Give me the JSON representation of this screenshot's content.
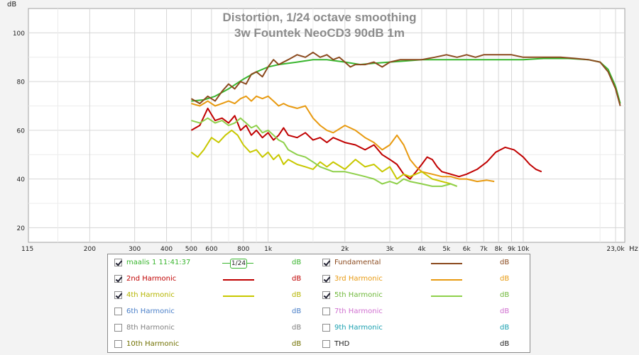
{
  "chart_data": {
    "type": "line",
    "title": "Distortion, 1/24 octave smoothing",
    "subtitle": "3w Fountek NeoCD3 90dB 1m",
    "ylabel": "dB",
    "x_unit_label": "Hz",
    "x_scale": "log",
    "xlim": [
      115,
      25000
    ],
    "ylim": [
      14,
      110
    ],
    "y_ticks": [
      20,
      40,
      60,
      80,
      100
    ],
    "x_ticks": [
      {
        "v": 115,
        "label": "115"
      },
      {
        "v": 200,
        "label": "200"
      },
      {
        "v": 300,
        "label": "300"
      },
      {
        "v": 400,
        "label": "400"
      },
      {
        "v": 500,
        "label": "500"
      },
      {
        "v": 600,
        "label": "600"
      },
      {
        "v": 800,
        "label": "800"
      },
      {
        "v": 1000,
        "label": "1k"
      },
      {
        "v": 2000,
        "label": "2k"
      },
      {
        "v": 3000,
        "label": "3k"
      },
      {
        "v": 4000,
        "label": "4k"
      },
      {
        "v": 5000,
        "label": "5k"
      },
      {
        "v": 6000,
        "label": "6k"
      },
      {
        "v": 7000,
        "label": "7k"
      },
      {
        "v": 8000,
        "label": "8k"
      },
      {
        "v": 9000,
        "label": "9k"
      },
      {
        "v": 10000,
        "label": "10k"
      },
      {
        "v": 23000,
        "label": "23,0k"
      }
    ],
    "x_minor": [
      150,
      700,
      900,
      1500,
      20000
    ],
    "series": [
      {
        "name": "maalis 1 11:41:37",
        "color": "#39b52e",
        "points": [
          [
            500,
            72
          ],
          [
            560,
            72.5
          ],
          [
            620,
            74
          ],
          [
            700,
            77
          ],
          [
            800,
            81
          ],
          [
            900,
            84
          ],
          [
            1000,
            86
          ],
          [
            1100,
            87
          ],
          [
            1300,
            88
          ],
          [
            1500,
            89
          ],
          [
            1700,
            89
          ],
          [
            2000,
            88
          ],
          [
            2300,
            87
          ],
          [
            2600,
            87.5
          ],
          [
            3000,
            88
          ],
          [
            3500,
            88.5
          ],
          [
            4000,
            89
          ],
          [
            5000,
            89
          ],
          [
            6000,
            89
          ],
          [
            7000,
            89
          ],
          [
            8000,
            89
          ],
          [
            9000,
            89
          ],
          [
            10000,
            89
          ],
          [
            12000,
            89.5
          ],
          [
            15000,
            89.5
          ],
          [
            18000,
            89
          ],
          [
            20000,
            88
          ],
          [
            21500,
            85
          ],
          [
            23000,
            78
          ],
          [
            24000,
            71
          ]
        ]
      },
      {
        "name": "Fundamental",
        "color": "#8b4a1e",
        "points": [
          [
            500,
            73
          ],
          [
            540,
            71
          ],
          [
            580,
            74
          ],
          [
            620,
            72
          ],
          [
            660,
            76
          ],
          [
            700,
            79
          ],
          [
            740,
            77
          ],
          [
            780,
            80
          ],
          [
            820,
            79
          ],
          [
            860,
            83
          ],
          [
            900,
            84
          ],
          [
            950,
            82
          ],
          [
            1000,
            86
          ],
          [
            1050,
            89
          ],
          [
            1100,
            87
          ],
          [
            1200,
            89
          ],
          [
            1300,
            91
          ],
          [
            1400,
            90
          ],
          [
            1500,
            92
          ],
          [
            1600,
            90
          ],
          [
            1700,
            91
          ],
          [
            1800,
            89
          ],
          [
            1900,
            90
          ],
          [
            2000,
            88
          ],
          [
            2100,
            86
          ],
          [
            2200,
            87
          ],
          [
            2400,
            87
          ],
          [
            2600,
            88
          ],
          [
            2800,
            86
          ],
          [
            3000,
            88
          ],
          [
            3300,
            89
          ],
          [
            3600,
            89
          ],
          [
            4000,
            89
          ],
          [
            4500,
            90
          ],
          [
            5000,
            91
          ],
          [
            5500,
            90
          ],
          [
            6000,
            91
          ],
          [
            6500,
            90
          ],
          [
            7000,
            91
          ],
          [
            8000,
            91
          ],
          [
            9000,
            91
          ],
          [
            10000,
            90
          ],
          [
            11000,
            90
          ],
          [
            12000,
            90
          ],
          [
            14000,
            90
          ],
          [
            16000,
            89.5
          ],
          [
            18000,
            89
          ],
          [
            20000,
            88
          ],
          [
            21500,
            84
          ],
          [
            23000,
            77
          ],
          [
            24000,
            70
          ]
        ]
      },
      {
        "name": "2nd Harmonic",
        "color": "#c00000",
        "points": [
          [
            500,
            60
          ],
          [
            540,
            62
          ],
          [
            580,
            69
          ],
          [
            620,
            64
          ],
          [
            660,
            65
          ],
          [
            700,
            63
          ],
          [
            740,
            66
          ],
          [
            780,
            60
          ],
          [
            820,
            62
          ],
          [
            860,
            58
          ],
          [
            900,
            60
          ],
          [
            950,
            57
          ],
          [
            1000,
            59
          ],
          [
            1050,
            56
          ],
          [
            1100,
            58
          ],
          [
            1150,
            61
          ],
          [
            1200,
            58
          ],
          [
            1300,
            57
          ],
          [
            1400,
            59
          ],
          [
            1500,
            56
          ],
          [
            1600,
            57
          ],
          [
            1700,
            55
          ],
          [
            1800,
            57
          ],
          [
            2000,
            55
          ],
          [
            2200,
            54
          ],
          [
            2400,
            52
          ],
          [
            2600,
            54
          ],
          [
            2800,
            50
          ],
          [
            3000,
            48
          ],
          [
            3200,
            46
          ],
          [
            3400,
            42
          ],
          [
            3600,
            40
          ],
          [
            3800,
            43
          ],
          [
            4000,
            46
          ],
          [
            4200,
            49
          ],
          [
            4400,
            48
          ],
          [
            4600,
            45
          ],
          [
            4800,
            43
          ],
          [
            5200,
            42
          ],
          [
            5600,
            41
          ],
          [
            6000,
            42
          ],
          [
            6600,
            44
          ],
          [
            7200,
            47
          ],
          [
            7800,
            51
          ],
          [
            8500,
            53
          ],
          [
            9200,
            52
          ],
          [
            10000,
            49
          ],
          [
            10600,
            46
          ],
          [
            11200,
            44
          ],
          [
            11800,
            43
          ]
        ]
      },
      {
        "name": "3rd Harmonic",
        "color": "#e89a10",
        "points": [
          [
            500,
            71
          ],
          [
            540,
            70
          ],
          [
            580,
            72
          ],
          [
            620,
            70
          ],
          [
            660,
            71
          ],
          [
            700,
            72
          ],
          [
            740,
            71
          ],
          [
            780,
            73
          ],
          [
            820,
            74
          ],
          [
            860,
            72
          ],
          [
            900,
            74
          ],
          [
            950,
            73
          ],
          [
            1000,
            74
          ],
          [
            1050,
            72
          ],
          [
            1100,
            70
          ],
          [
            1150,
            71
          ],
          [
            1200,
            70
          ],
          [
            1300,
            69
          ],
          [
            1400,
            70
          ],
          [
            1500,
            65
          ],
          [
            1600,
            62
          ],
          [
            1700,
            60
          ],
          [
            1800,
            59
          ],
          [
            2000,
            62
          ],
          [
            2200,
            60
          ],
          [
            2400,
            57
          ],
          [
            2600,
            55
          ],
          [
            2800,
            52
          ],
          [
            3000,
            54
          ],
          [
            3200,
            58
          ],
          [
            3400,
            54
          ],
          [
            3600,
            48
          ],
          [
            3800,
            45
          ],
          [
            4000,
            43
          ],
          [
            4400,
            42
          ],
          [
            4800,
            41
          ],
          [
            5200,
            41
          ],
          [
            5600,
            40
          ],
          [
            6000,
            40
          ],
          [
            6600,
            39
          ],
          [
            7200,
            39.5
          ],
          [
            7700,
            39
          ]
        ]
      },
      {
        "name": "4th Harmonic",
        "color": "#c8c800",
        "points": [
          [
            500,
            51
          ],
          [
            530,
            49
          ],
          [
            560,
            52
          ],
          [
            600,
            57
          ],
          [
            640,
            55
          ],
          [
            680,
            58
          ],
          [
            720,
            60
          ],
          [
            760,
            58
          ],
          [
            800,
            54
          ],
          [
            850,
            51
          ],
          [
            900,
            52
          ],
          [
            950,
            49
          ],
          [
            1000,
            51
          ],
          [
            1050,
            48
          ],
          [
            1100,
            50
          ],
          [
            1150,
            46
          ],
          [
            1200,
            48
          ],
          [
            1300,
            46
          ],
          [
            1400,
            45
          ],
          [
            1500,
            44
          ],
          [
            1600,
            47
          ],
          [
            1700,
            45
          ],
          [
            1800,
            47
          ],
          [
            2000,
            44
          ],
          [
            2200,
            48
          ],
          [
            2400,
            45
          ],
          [
            2600,
            46
          ],
          [
            2800,
            43
          ],
          [
            3000,
            45
          ],
          [
            3200,
            40
          ],
          [
            3400,
            42
          ],
          [
            3600,
            41
          ],
          [
            4000,
            43
          ],
          [
            4400,
            40
          ],
          [
            4800,
            39
          ],
          [
            5200,
            38
          ],
          [
            5500,
            37
          ]
        ]
      },
      {
        "name": "5th Harmonic",
        "color": "#8ed04a",
        "points": [
          [
            500,
            64
          ],
          [
            540,
            63
          ],
          [
            580,
            65
          ],
          [
            620,
            63
          ],
          [
            660,
            64
          ],
          [
            700,
            62
          ],
          [
            740,
            63
          ],
          [
            780,
            65
          ],
          [
            820,
            63
          ],
          [
            860,
            61
          ],
          [
            900,
            62
          ],
          [
            950,
            59
          ],
          [
            1000,
            60
          ],
          [
            1050,
            58
          ],
          [
            1100,
            56
          ],
          [
            1150,
            55
          ],
          [
            1200,
            52
          ],
          [
            1300,
            50
          ],
          [
            1400,
            49
          ],
          [
            1500,
            47
          ],
          [
            1600,
            45
          ],
          [
            1700,
            44
          ],
          [
            1800,
            43
          ],
          [
            2000,
            43
          ],
          [
            2200,
            42
          ],
          [
            2400,
            41
          ],
          [
            2600,
            40
          ],
          [
            2800,
            38
          ],
          [
            3000,
            39
          ],
          [
            3200,
            38
          ],
          [
            3400,
            40
          ],
          [
            3600,
            39
          ],
          [
            4000,
            38
          ],
          [
            4400,
            37
          ],
          [
            4800,
            37
          ],
          [
            5200,
            38
          ],
          [
            5500,
            37
          ]
        ]
      }
    ]
  },
  "legend": {
    "unit": "dB",
    "smoothing_label": "1/24",
    "items": [
      {
        "label": "maalis 1 11:41:37",
        "checked": true,
        "enabled": true,
        "name_color": "#39b52e",
        "line_color": "#39b52e",
        "unit_color": "#39b52e",
        "smoothing": true
      },
      {
        "label": "Fundamental",
        "checked": true,
        "enabled": true,
        "name_color": "#8b4a1e",
        "line_color": "#8b4a1e",
        "unit_color": "#8b4a1e"
      },
      {
        "label": "2nd Harmonic",
        "checked": true,
        "enabled": true,
        "name_color": "#c00000",
        "line_color": "#c00000",
        "unit_color": "#c00000"
      },
      {
        "label": "3rd Harmonic",
        "checked": true,
        "enabled": true,
        "name_color": "#e89a10",
        "line_color": "#e89a10",
        "unit_color": "#e89a10"
      },
      {
        "label": "4th Harmonic",
        "checked": true,
        "enabled": true,
        "name_color": "#b5b500",
        "line_color": "#c8c800",
        "unit_color": "#b5b500"
      },
      {
        "label": "5th Harmonic",
        "checked": true,
        "enabled": true,
        "name_color": "#6fb83a",
        "line_color": "#8ed04a",
        "unit_color": "#6fb83a"
      },
      {
        "label": "6th Harmonic",
        "checked": false,
        "enabled": true,
        "name_color": "#4a7fc8",
        "line_color": null,
        "unit_color": "#4a7fc8"
      },
      {
        "label": "7th Harmonic",
        "checked": false,
        "enabled": true,
        "name_color": "#d070d0",
        "line_color": null,
        "unit_color": "#d070d0"
      },
      {
        "label": "8th Harmonic",
        "checked": false,
        "enabled": true,
        "name_color": "#808080",
        "line_color": null,
        "unit_color": "#808080"
      },
      {
        "label": "9th Harmonic",
        "checked": false,
        "enabled": true,
        "name_color": "#1aa0b0",
        "line_color": null,
        "unit_color": "#1aa0b0"
      },
      {
        "label": "10th Harmonic",
        "checked": false,
        "enabled": true,
        "name_color": "#707000",
        "line_color": null,
        "unit_color": "#707000"
      },
      {
        "label": "THD",
        "checked": false,
        "enabled": true,
        "name_color": "#222222",
        "line_color": null,
        "unit_color": "#222222"
      }
    ]
  }
}
